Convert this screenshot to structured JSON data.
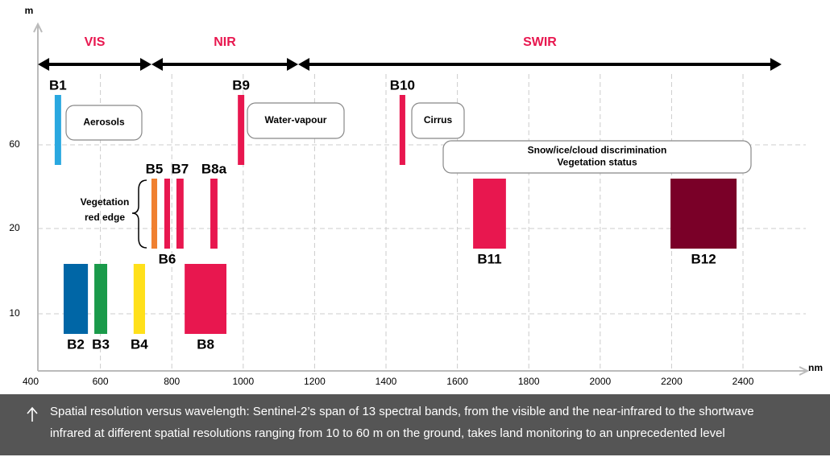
{
  "chart_data": {
    "type": "range-bar",
    "y_label": "m",
    "x_label": "nm",
    "xlim": [
      400,
      2576
    ],
    "xticks": [
      400,
      600,
      800,
      1000,
      1200,
      1400,
      1600,
      1800,
      2000,
      2200,
      2400
    ],
    "yticks": [
      10,
      20,
      60
    ],
    "grid": true,
    "ranges": [
      {
        "name": "VIS",
        "start": 425,
        "end": 743
      },
      {
        "name": "NIR",
        "start": 743,
        "end": 1154
      },
      {
        "name": "SWIR",
        "start": 1154,
        "end": 2508
      }
    ],
    "bands": [
      {
        "name": "B1",
        "start": 472,
        "end": 490,
        "resolution": 60,
        "color": "#29a8e0"
      },
      {
        "name": "B2",
        "start": 497,
        "end": 565,
        "resolution": 10,
        "color": "#0066a6"
      },
      {
        "name": "B3",
        "start": 583,
        "end": 619,
        "resolution": 10,
        "color": "#1a9a4a"
      },
      {
        "name": "B4",
        "start": 693,
        "end": 725,
        "resolution": 10,
        "color": "#ffe01a"
      },
      {
        "name": "B5",
        "start": 743,
        "end": 759,
        "resolution": 20,
        "color": "#f08030"
      },
      {
        "name": "B6",
        "start": 779,
        "end": 795,
        "resolution": 20,
        "color": "#e8174f"
      },
      {
        "name": "B7",
        "start": 813,
        "end": 833,
        "resolution": 20,
        "color": "#e8174f"
      },
      {
        "name": "B8",
        "start": 836,
        "end": 953,
        "resolution": 10,
        "color": "#e8174f"
      },
      {
        "name": "B8a",
        "start": 908,
        "end": 928,
        "resolution": 20,
        "color": "#e8174f"
      },
      {
        "name": "B9",
        "start": 985,
        "end": 1003,
        "resolution": 60,
        "color": "#e8174f"
      },
      {
        "name": "B10",
        "start": 1438,
        "end": 1454,
        "resolution": 60,
        "color": "#e8174f"
      },
      {
        "name": "B11",
        "start": 1644,
        "end": 1736,
        "resolution": 20,
        "color": "#e8174f"
      },
      {
        "name": "B12",
        "start": 2197,
        "end": 2382,
        "resolution": 20,
        "color": "#7a0028"
      }
    ],
    "annotations": [
      [
        "Aerosols"
      ],
      [
        "Water-vapour"
      ],
      [
        "Cirrus"
      ],
      [
        "Snow/ice/cloud discrimination",
        "Vegetation status"
      ],
      [
        "Vegetation",
        "red edge"
      ]
    ],
    "caption": [
      "Spatial resolution versus wavelength: Sentinel-2’s span of 13 spectral bands, from the visible and the near-infrared to the shortwave",
      "infrared at different spatial resolutions ranging from 10 to 60 m on the ground, takes land monitoring to an unprecedented level"
    ]
  }
}
